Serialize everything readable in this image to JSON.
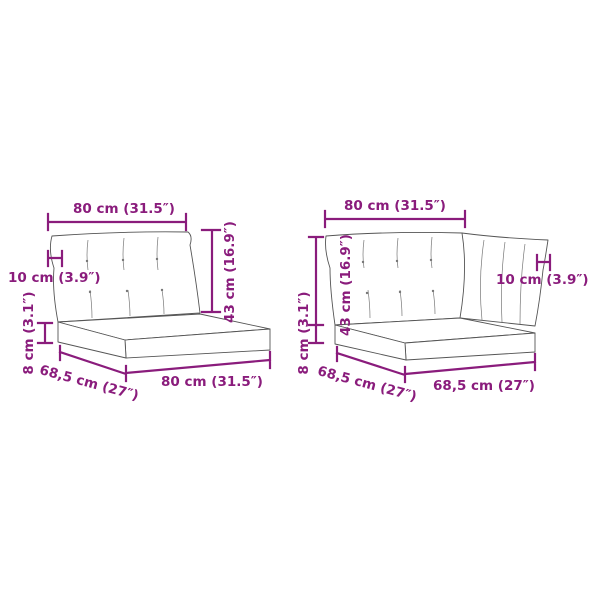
{
  "colors": {
    "dimension": "#8a1c7c",
    "outline": "#555555"
  },
  "middle_cushion": {
    "back_width": "80 cm (31.5″)",
    "back_thickness": "10 cm (3.9″)",
    "back_height": "43 cm (16.9″)",
    "seat_height": "8 cm (3.1″)",
    "seat_depth": "68,5 cm (27″)",
    "seat_width": "80 cm (31.5″)"
  },
  "corner_cushion": {
    "back_width": "80 cm (31.5″)",
    "back_thickness": "10 cm (3.9″)",
    "back_height": "43 cm (16.9″)",
    "seat_height": "8 cm (3.1″)",
    "seat_depth": "68,5 cm (27″)",
    "seat_width": "68,5 cm (27″)"
  }
}
